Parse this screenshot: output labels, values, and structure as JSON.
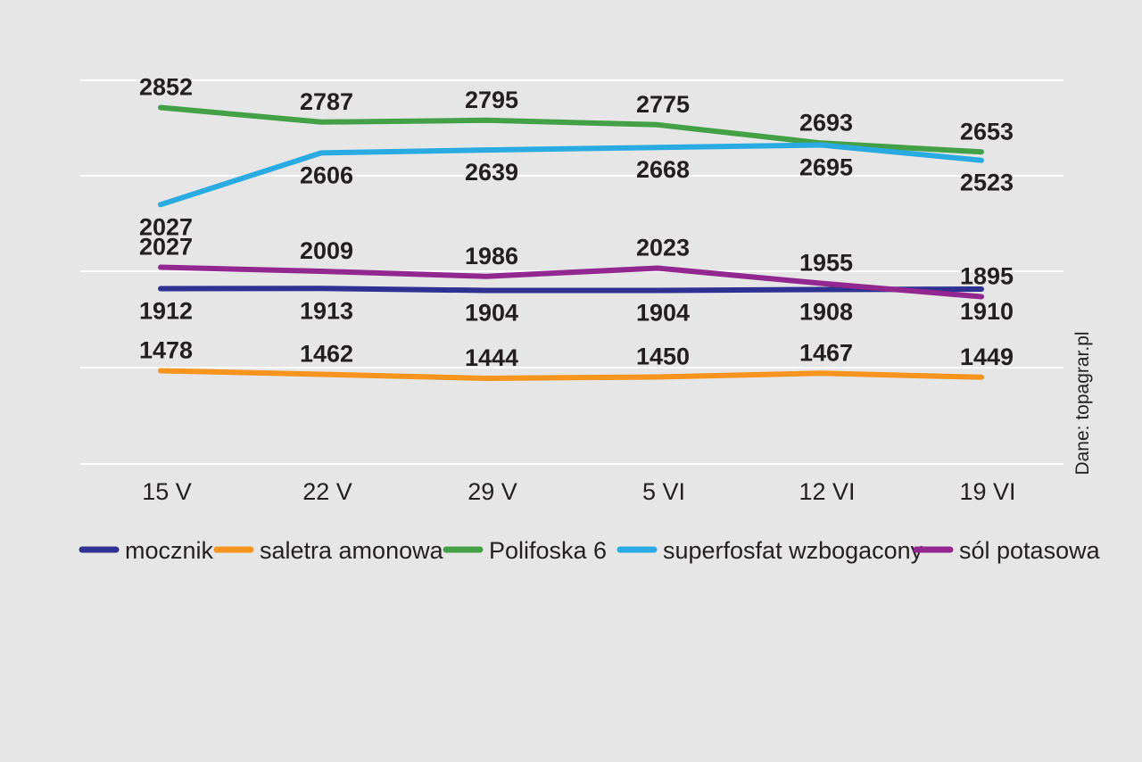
{
  "source": "Dane: topagrar.pl",
  "colors": {
    "background": "#e6e6e6",
    "gridline": "#ffffff",
    "text": "#231f20"
  },
  "chart_data": {
    "type": "line",
    "categories": [
      "15 V",
      "22 V",
      "29 V",
      "5 VI",
      "12 VI",
      "19 VI"
    ],
    "grid": true,
    "legend_position": "bottom",
    "series": [
      {
        "name": "mocznik",
        "color": "#2e3192",
        "label_position": "below",
        "values": [
          1912,
          1913,
          1904,
          1904,
          1908,
          1910
        ]
      },
      {
        "name": "saletra amonowa",
        "color": "#f7941d",
        "label_position": "above",
        "values": [
          1478,
          1462,
          1444,
          1450,
          1467,
          1449
        ]
      },
      {
        "name": "Polifoska 6",
        "color": "#43a047",
        "label_position": "above",
        "values": [
          2852,
          2787,
          2795,
          2775,
          2693,
          2653
        ]
      },
      {
        "name": "superfosfat wzbogacony",
        "color": "#29abe2",
        "label_position": "below",
        "values": [
          2027,
          2606,
          2639,
          2668,
          2695,
          2523
        ]
      },
      {
        "name": "sól potasowa",
        "color": "#92278f",
        "label_position": "above",
        "values": [
          2027,
          2009,
          1986,
          2023,
          1955,
          1895
        ]
      }
    ]
  }
}
